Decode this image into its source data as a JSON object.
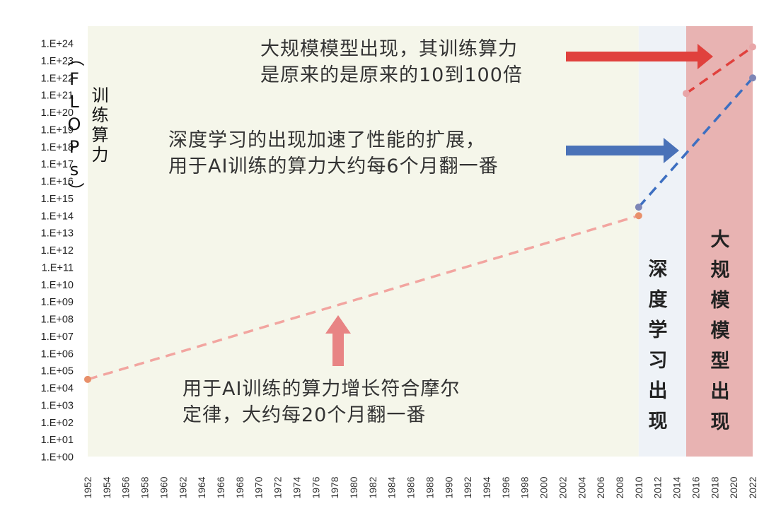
{
  "chart_data": {
    "type": "line",
    "ylabel": "训练算力（FLOPs）",
    "y_scale": "log",
    "ylim": [
      0,
      24
    ],
    "y_ticks": [
      "1.E+00",
      "1.E+01",
      "1.E+02",
      "1.E+03",
      "1.E+04",
      "1.E+05",
      "1.E+06",
      "1.E+07",
      "1.E+08",
      "1.E+09",
      "1.E+10",
      "1.E+11",
      "1.E+12",
      "1.E+13",
      "1.E+14",
      "1.E+15",
      "1.E+16",
      "1.E+17",
      "1.E+18",
      "1.E+19",
      "1.E+20",
      "1.E+21",
      "1.E+22",
      "1.E+23",
      "1.E+24"
    ],
    "x_ticks": [
      "1952",
      "1954",
      "1956",
      "1958",
      "1960",
      "1962",
      "1964",
      "1966",
      "1968",
      "1970",
      "1972",
      "1974",
      "1976",
      "1978",
      "1980",
      "1982",
      "1984",
      "1986",
      "1988",
      "1990",
      "1992",
      "1994",
      "1996",
      "1998",
      "2000",
      "2002",
      "2004",
      "2006",
      "2008",
      "2010",
      "2012",
      "2014",
      "2016",
      "2018",
      "2020",
      "2022"
    ],
    "xlim": [
      1952,
      2022
    ],
    "grid": false,
    "series": [
      {
        "x": [
          1952,
          2010
        ],
        "y": [
          4.5,
          14.0
        ],
        "color": "#f2a5a0",
        "marker_color": "#e8906a"
      },
      {
        "x": [
          2010,
          2022
        ],
        "y": [
          14.5,
          22.0
        ],
        "color": "#3d6fc1",
        "marker_color": "#7e86b6"
      },
      {
        "x": [
          2015,
          2022
        ],
        "y": [
          21.1,
          23.8
        ],
        "color": "#e0413d",
        "marker_color": "#e8a6a8"
      }
    ],
    "regions": [
      {
        "x": [
          1952,
          2010
        ],
        "color": "#f5f6ea"
      },
      {
        "x": [
          2010,
          2015
        ],
        "color": "#eef2f7",
        "label": [
          "深",
          "度",
          "学",
          "习",
          "出",
          "现"
        ]
      },
      {
        "x": [
          2015,
          2022
        ],
        "color": "#e8b3b2",
        "label": [
          "大",
          "规",
          "模",
          "模",
          "型",
          "出",
          "现"
        ]
      }
    ],
    "annotations": [
      {
        "lines": [
          "大规模模型出现，其训练算力",
          "是原来的是原来的10到100倍"
        ],
        "arrow_color": "#e0413d"
      },
      {
        "lines": [
          "深度学习的出现加速了性能的扩展，",
          "用于AI训练的算力大约每6个月翻一番"
        ],
        "arrow_color": "#4a72b8"
      },
      {
        "lines": [
          "用于AI训练的算力增长符合摩尔",
          "定律，大约每20个月翻一番"
        ],
        "arrow_color": "#e88484"
      }
    ]
  }
}
